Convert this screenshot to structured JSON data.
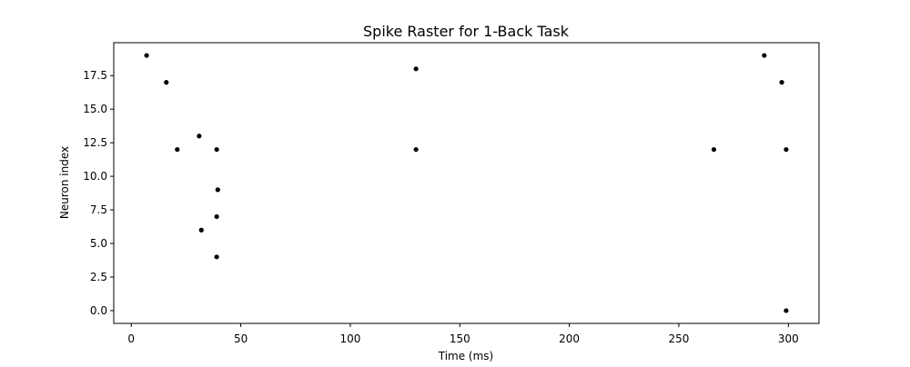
{
  "chart_data": {
    "type": "scatter",
    "title": "Spike Raster for 1-Back Task",
    "xlabel": "Time (ms)",
    "ylabel": "Neuron index",
    "xlim": [
      -8,
      314
    ],
    "ylim": [
      -0.95,
      19.95
    ],
    "xticks": [
      0,
      50,
      100,
      150,
      200,
      250,
      300
    ],
    "xtick_labels": [
      "0",
      "50",
      "100",
      "150",
      "200",
      "250",
      "300"
    ],
    "yticks": [
      0.0,
      2.5,
      5.0,
      7.5,
      10.0,
      12.5,
      15.0,
      17.5
    ],
    "ytick_labels": [
      "0.0",
      "2.5",
      "5.0",
      "7.5",
      "10.0",
      "12.5",
      "15.0",
      "17.5"
    ],
    "grid": false,
    "marker_color": "#000000",
    "points": [
      {
        "x": 7,
        "y": 19
      },
      {
        "x": 16,
        "y": 17
      },
      {
        "x": 21,
        "y": 12
      },
      {
        "x": 31,
        "y": 13
      },
      {
        "x": 32,
        "y": 6
      },
      {
        "x": 39,
        "y": 4
      },
      {
        "x": 39,
        "y": 7
      },
      {
        "x": 39,
        "y": 12
      },
      {
        "x": 39.5,
        "y": 9
      },
      {
        "x": 130,
        "y": 18
      },
      {
        "x": 130,
        "y": 12
      },
      {
        "x": 266,
        "y": 12
      },
      {
        "x": 289,
        "y": 19
      },
      {
        "x": 297,
        "y": 17
      },
      {
        "x": 299,
        "y": 12
      },
      {
        "x": 299,
        "y": 0
      }
    ]
  }
}
